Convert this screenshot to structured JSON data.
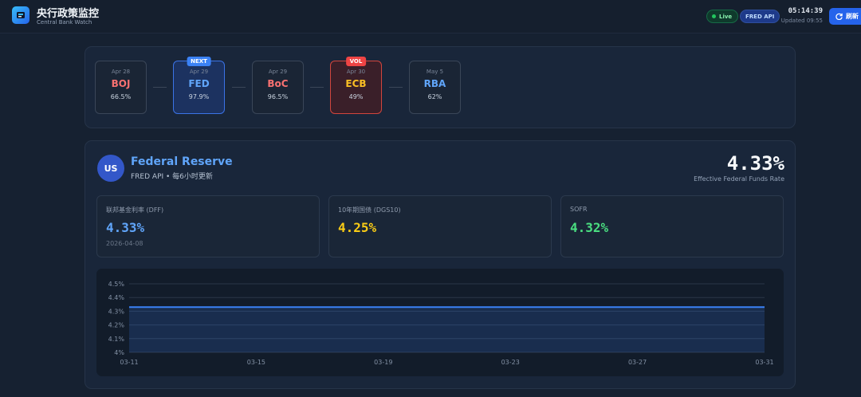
{
  "header": {
    "title": "央行政策监控",
    "subtitle": "Central Bank Watch",
    "live_label": "Live",
    "fred_label": "FRED API",
    "clock": "05:14:39",
    "updated": "Updated 09:55",
    "refresh_label": "刷新"
  },
  "meetings": [
    {
      "date": "Apr 28",
      "name": "BOJ",
      "prob": "66.5%",
      "tag": "",
      "color": "#f87171"
    },
    {
      "date": "Apr 29",
      "name": "FED",
      "prob": "97.9%",
      "tag": "NEXT",
      "color": "#60a5fa"
    },
    {
      "date": "Apr 29",
      "name": "BoC",
      "prob": "96.5%",
      "tag": "",
      "color": "#f87171"
    },
    {
      "date": "Apr 30",
      "name": "ECB",
      "prob": "49%",
      "tag": "VOL",
      "color": "#fbbf24"
    },
    {
      "date": "May 5",
      "name": "RBA",
      "prob": "62%",
      "tag": "",
      "color": "#60a5fa"
    }
  ],
  "fed": {
    "badge": "US",
    "name": "Federal Reserve",
    "subtitle": "FRED API • 每6小时更新",
    "effective_rate": "4.33%",
    "effective_label": "Effective Federal Funds Rate",
    "metrics": [
      {
        "label": "联邦基金利率 (DFF)",
        "value": "4.33%",
        "date": "2026-04-08",
        "color": "#60a5fa"
      },
      {
        "label": "10年期国债 (DGS10)",
        "value": "4.25%",
        "date": "",
        "color": "#facc15"
      },
      {
        "label": "SOFR",
        "value": "4.32%",
        "date": "",
        "color": "#4ade80"
      }
    ]
  },
  "chart_data": {
    "type": "area",
    "x_ticks": [
      "03-11",
      "03-15",
      "03-19",
      "03-23",
      "03-27",
      "03-31"
    ],
    "y_ticks": [
      "4%",
      "4.1%",
      "4.2%",
      "4.3%",
      "4.4%",
      "4.5%"
    ],
    "ylim": [
      4.0,
      4.5
    ],
    "grid": true,
    "series": [
      {
        "values": [
          4.33,
          4.33,
          4.33,
          4.33,
          4.33,
          4.33,
          4.33,
          4.33,
          4.33,
          4.33,
          4.33,
          4.33,
          4.33,
          4.33,
          4.33,
          4.33,
          4.33,
          4.33,
          4.33,
          4.33,
          4.33
        ],
        "color": "#3b82f6"
      }
    ]
  }
}
